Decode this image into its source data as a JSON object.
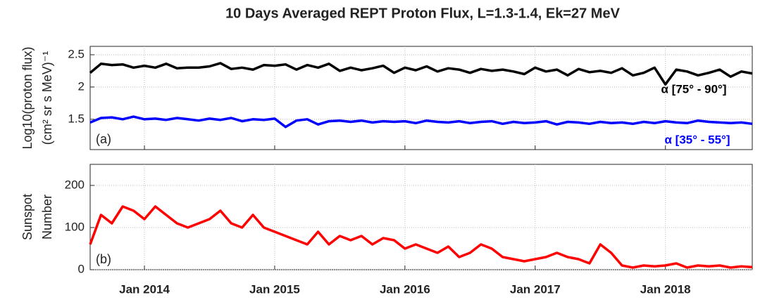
{
  "chart_data": [
    {
      "type": "line",
      "title": "10 Days Averaged REPT Proton Flux, L=1.3-1.4, Ek=27 MeV",
      "ylabel": [
        "Log10(proton flux)",
        "(cm² sr s MeV)⁻¹"
      ],
      "panel_label": "(a)",
      "x": [
        "2013-08",
        "2013-09",
        "2013-10",
        "2013-11",
        "2013-12",
        "2014-01",
        "2014-02",
        "2014-03",
        "2014-04",
        "2014-05",
        "2014-06",
        "2014-07",
        "2014-08",
        "2014-09",
        "2014-10",
        "2014-11",
        "2014-12",
        "2015-01",
        "2015-02",
        "2015-03",
        "2015-04",
        "2015-05",
        "2015-06",
        "2015-07",
        "2015-08",
        "2015-09",
        "2015-10",
        "2015-11",
        "2015-12",
        "2016-01",
        "2016-02",
        "2016-03",
        "2016-04",
        "2016-05",
        "2016-06",
        "2016-07",
        "2016-08",
        "2016-09",
        "2016-10",
        "2016-11",
        "2016-12",
        "2017-01",
        "2017-02",
        "2017-03",
        "2017-04",
        "2017-05",
        "2017-06",
        "2017-07",
        "2017-08",
        "2017-09",
        "2017-10",
        "2017-11",
        "2017-12",
        "2018-01",
        "2018-02",
        "2018-03",
        "2018-04",
        "2018-05",
        "2018-06",
        "2018-07",
        "2018-08",
        "2018-09"
      ],
      "xlim": [
        "2013-08",
        "2018-09"
      ],
      "xticks": [
        "2014-01",
        "2015-01",
        "2016-01",
        "2017-01",
        "2018-01"
      ],
      "ylim": [
        1.03,
        2.63
      ],
      "yticks": [
        1.5,
        2,
        2.5
      ],
      "grid": true,
      "series": [
        {
          "name": "α [75° - 90°]",
          "color": "#000000",
          "values": [
            2.22,
            2.36,
            2.34,
            2.35,
            2.3,
            2.33,
            2.3,
            2.36,
            2.29,
            2.3,
            2.3,
            2.32,
            2.37,
            2.28,
            2.3,
            2.27,
            2.34,
            2.33,
            2.35,
            2.27,
            2.34,
            2.3,
            2.36,
            2.25,
            2.3,
            2.26,
            2.29,
            2.33,
            2.22,
            2.3,
            2.26,
            2.32,
            2.24,
            2.29,
            2.27,
            2.22,
            2.28,
            2.25,
            2.27,
            2.24,
            2.2,
            2.3,
            2.24,
            2.27,
            2.18,
            2.28,
            2.23,
            2.25,
            2.22,
            2.29,
            2.18,
            2.22,
            2.3,
            2.04,
            2.27,
            2.24,
            2.18,
            2.22,
            2.27,
            2.16,
            2.24,
            2.21
          ]
        },
        {
          "name": "α [35° - 55°]",
          "color": "#0000ff",
          "values": [
            1.45,
            1.52,
            1.53,
            1.5,
            1.54,
            1.5,
            1.51,
            1.49,
            1.52,
            1.5,
            1.48,
            1.51,
            1.49,
            1.52,
            1.47,
            1.5,
            1.49,
            1.51,
            1.38,
            1.48,
            1.5,
            1.42,
            1.47,
            1.48,
            1.46,
            1.48,
            1.45,
            1.47,
            1.46,
            1.47,
            1.44,
            1.48,
            1.46,
            1.45,
            1.47,
            1.44,
            1.46,
            1.47,
            1.43,
            1.46,
            1.44,
            1.45,
            1.47,
            1.42,
            1.46,
            1.45,
            1.43,
            1.46,
            1.44,
            1.45,
            1.43,
            1.46,
            1.44,
            1.47,
            1.45,
            1.44,
            1.48,
            1.46,
            1.45,
            1.44,
            1.45,
            1.43
          ]
        }
      ]
    },
    {
      "type": "line",
      "ylabel": [
        "Sunspot",
        "Number"
      ],
      "panel_label": "(b)",
      "x": [
        "2013-08",
        "2013-09",
        "2013-10",
        "2013-11",
        "2013-12",
        "2014-01",
        "2014-02",
        "2014-03",
        "2014-04",
        "2014-05",
        "2014-06",
        "2014-07",
        "2014-08",
        "2014-09",
        "2014-10",
        "2014-11",
        "2014-12",
        "2015-01",
        "2015-02",
        "2015-03",
        "2015-04",
        "2015-05",
        "2015-06",
        "2015-07",
        "2015-08",
        "2015-09",
        "2015-10",
        "2015-11",
        "2015-12",
        "2016-01",
        "2016-02",
        "2016-03",
        "2016-04",
        "2016-05",
        "2016-06",
        "2016-07",
        "2016-08",
        "2016-09",
        "2016-10",
        "2016-11",
        "2016-12",
        "2017-01",
        "2017-02",
        "2017-03",
        "2017-04",
        "2017-05",
        "2017-06",
        "2017-07",
        "2017-08",
        "2017-09",
        "2017-10",
        "2017-11",
        "2017-12",
        "2018-01",
        "2018-02",
        "2018-03",
        "2018-04",
        "2018-05",
        "2018-06",
        "2018-07",
        "2018-08",
        "2018-09"
      ],
      "xlim": [
        "2013-08",
        "2018-09"
      ],
      "xticks": [
        {
          "value": "2014-01",
          "label": "Jan 2014"
        },
        {
          "value": "2015-01",
          "label": "Jan 2015"
        },
        {
          "value": "2016-01",
          "label": "Jan 2016"
        },
        {
          "value": "2017-01",
          "label": "Jan 2017"
        },
        {
          "value": "2018-01",
          "label": "Jan 2018"
        }
      ],
      "ylim": [
        0,
        250
      ],
      "yticks": [
        0,
        100,
        200
      ],
      "grid": true,
      "series": [
        {
          "name": "Sunspot Number",
          "color": "#ff0000",
          "values": [
            60,
            130,
            110,
            150,
            140,
            120,
            150,
            130,
            110,
            100,
            110,
            120,
            140,
            110,
            100,
            130,
            100,
            90,
            80,
            70,
            60,
            90,
            60,
            80,
            70,
            80,
            60,
            75,
            70,
            50,
            60,
            50,
            40,
            55,
            30,
            40,
            60,
            50,
            30,
            25,
            20,
            25,
            30,
            40,
            30,
            25,
            15,
            60,
            40,
            10,
            5,
            10,
            8,
            10,
            15,
            5,
            10,
            8,
            10,
            5,
            8,
            6
          ]
        }
      ]
    }
  ]
}
